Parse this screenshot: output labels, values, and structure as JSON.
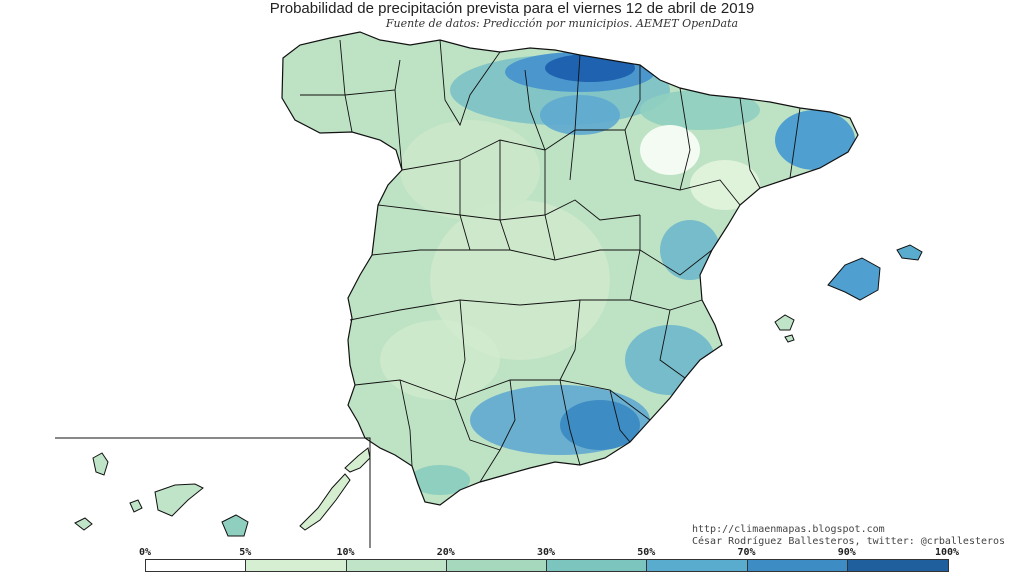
{
  "title": "Probabilidad de precipitación prevista para el viernes 12 de abril de 2019",
  "subtitle": "Fuente de datos: Predicción por municipios. AEMET OpenData",
  "credits": {
    "line1": "http://climaenmapas.blogspot.com",
    "line2": "César Rodríguez Ballesteros, twitter: @crballesteros"
  },
  "legend": {
    "ticks": [
      "0%",
      "5%",
      "10%",
      "20%",
      "30%",
      "50%",
      "70%",
      "90%",
      "100%"
    ],
    "colors": [
      "#ffffff",
      "#d6eed2",
      "#bfe4c7",
      "#a6d8bd",
      "#7cc5bf",
      "#5aaccf",
      "#3d8cc4",
      "#1f5f9e"
    ]
  },
  "colors": {
    "land_base": "#bde2c4",
    "land_low": "#d4eecf",
    "land_mid": "#8fcfc0",
    "land_high": "#4f9fd0",
    "land_max": "#1f62b0",
    "land_dry": "#f4fbf2",
    "border": "#111111"
  }
}
